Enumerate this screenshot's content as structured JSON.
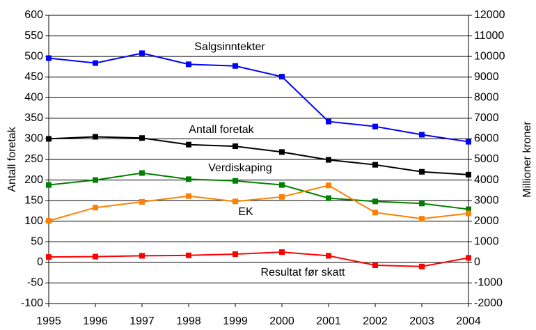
{
  "chart_data": {
    "type": "line",
    "categories": [
      "1995",
      "1996",
      "1997",
      "1998",
      "1999",
      "2000",
      "2001",
      "2002",
      "2003",
      "2004"
    ],
    "ylabel": "Antall foretak",
    "y2label": "Millioner kroner",
    "ylim": [
      -100,
      600
    ],
    "yticks": [
      -100,
      -50,
      0,
      50,
      100,
      150,
      200,
      250,
      300,
      350,
      400,
      450,
      500,
      550,
      600
    ],
    "y2lim": [
      -2000,
      12000
    ],
    "y2ticks": [
      -2000,
      -1000,
      0,
      1000,
      2000,
      3000,
      4000,
      5000,
      6000,
      7000,
      8000,
      9000,
      10000,
      11000,
      12000
    ],
    "grid": true,
    "series": [
      {
        "name": "Salgsinntekter",
        "color": "#0000ff",
        "axis": "y2",
        "values": [
          9920,
          9680,
          10160,
          9620,
          9540,
          9020,
          6840,
          6600,
          6200,
          5860
        ]
      },
      {
        "name": "Antall foretak",
        "color": "#000000",
        "axis": "y",
        "values": [
          300,
          305,
          302,
          286,
          282,
          268,
          249,
          237,
          220,
          213
        ]
      },
      {
        "name": "Verdiskaping",
        "color": "#008000",
        "axis": "y2",
        "values": [
          3760,
          4000,
          4340,
          4040,
          3960,
          3760,
          3120,
          2960,
          2860,
          2580
        ]
      },
      {
        "name": "EK",
        "color": "#ff8000",
        "axis": "y2",
        "values": [
          2020,
          2660,
          2940,
          3220,
          2960,
          3180,
          3740,
          2420,
          2120,
          2380
        ]
      },
      {
        "name": "Resultat før skatt",
        "color": "#ff0000",
        "axis": "y2",
        "values": [
          260,
          280,
          320,
          340,
          400,
          500,
          320,
          -140,
          -200,
          220
        ]
      }
    ]
  }
}
